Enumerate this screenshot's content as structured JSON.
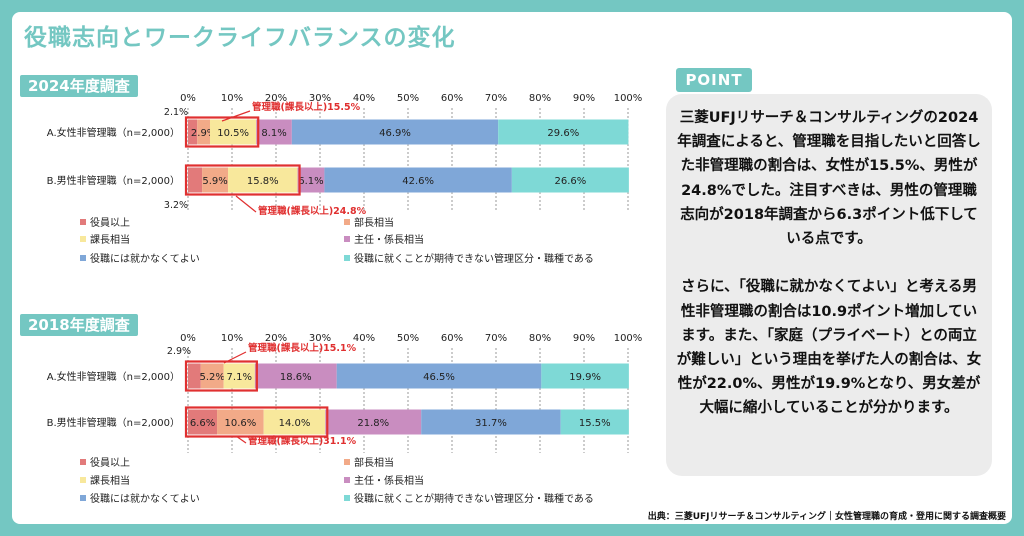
{
  "title": "役職志向とワークライフバランスの変化",
  "colors": {
    "accent": "#74C7C2",
    "highlight": "#E03030",
    "segments": [
      "#E27A7A",
      "#F2AA88",
      "#F8E89C",
      "#C98DC0",
      "#7FA7D8",
      "#7ED9D6"
    ]
  },
  "chart_data": [
    {
      "type": "bar",
      "orientation": "horizontal",
      "stacked": true,
      "title": "2024年度調査",
      "x_ticks": [
        "0%",
        "10%",
        "20%",
        "30%",
        "40%",
        "50%",
        "60%",
        "70%",
        "80%",
        "90%",
        "100%"
      ],
      "xlim": [
        0,
        100
      ],
      "categories": [
        "A.女性非管理職（n=2,000）",
        "B.男性非管理職（n=2,000）"
      ],
      "series": [
        {
          "name": "役員以上",
          "values": [
            2.1,
            3.2
          ],
          "labels": [
            "2.1%",
            "3.2%"
          ]
        },
        {
          "name": "部長相当",
          "values": [
            2.9,
            5.9
          ],
          "labels": [
            "2.9%",
            "5.9%"
          ]
        },
        {
          "name": "課長相当",
          "values": [
            10.5,
            15.8
          ],
          "labels": [
            "10.5%",
            "15.8%"
          ]
        },
        {
          "name": "主任・係長相当",
          "values": [
            8.1,
            6.1
          ],
          "labels": [
            "8.1%",
            "6.1%"
          ]
        },
        {
          "name": "役職には就かなくてよい",
          "values": [
            46.9,
            42.6
          ],
          "labels": [
            "46.9%",
            "42.6%"
          ]
        },
        {
          "name": "役職に就くことが期待できない管理区分・職種である",
          "values": [
            29.6,
            26.6
          ],
          "labels": [
            "29.6%",
            "26.6%"
          ]
        }
      ],
      "annotations": [
        "管理職(課長以上)15.5%",
        "管理職(課長以上)24.8%"
      ],
      "legend": "bottom",
      "grid": true
    },
    {
      "type": "bar",
      "orientation": "horizontal",
      "stacked": true,
      "title": "2018年度調査",
      "x_ticks": [
        "0%",
        "10%",
        "20%",
        "30%",
        "40%",
        "50%",
        "60%",
        "70%",
        "80%",
        "90%",
        "100%"
      ],
      "xlim": [
        0,
        100
      ],
      "categories": [
        "A.女性非管理職（n=2,000）",
        "B.男性非管理職（n=2,000）"
      ],
      "series": [
        {
          "name": "役員以上",
          "values": [
            2.9,
            6.6
          ],
          "labels": [
            "2.9%",
            "6.6%"
          ]
        },
        {
          "name": "部長相当",
          "values": [
            5.2,
            10.6
          ],
          "labels": [
            "5.2%",
            "10.6%"
          ]
        },
        {
          "name": "課長相当",
          "values": [
            7.1,
            14.0
          ],
          "labels": [
            "7.1%",
            "14.0%"
          ]
        },
        {
          "name": "主任・係長相当",
          "values": [
            18.6,
            21.8
          ],
          "labels": [
            "18.6%",
            "21.8%"
          ]
        },
        {
          "name": "役職には就かなくてよい",
          "values": [
            46.5,
            31.7
          ],
          "labels": [
            "46.5%",
            "31.7%"
          ]
        },
        {
          "name": "役職に就くことが期待できない管理区分・職種である",
          "values": [
            19.9,
            15.5
          ],
          "labels": [
            "19.9%",
            "15.5%"
          ]
        }
      ],
      "annotations": [
        "管理職(課長以上)15.1%",
        "管理職(課長以上)31.1%"
      ],
      "legend": "bottom",
      "grid": true
    }
  ],
  "point": {
    "label": "POINT",
    "text": "三菱UFJリサーチ＆コンサルティングの2024年調査によると、管理職を目指したいと回答した非管理職の割合は、女性が15.5%、男性が24.8%でした。注目すべきは、男性の管理職志向が2018年調査から6.3ポイント低下している点です。\n\nさらに、「役職に就かなくてよい」と考える男性非管理職の割合は10.9ポイント増加しています。また、「家庭（プライベート）との両立が難しい」という理由を挙げた人の割合は、女性が22.0%、男性が19.9%となり、男女差が大幅に縮小していることが分かります。"
  },
  "source": "出典：三菱UFJリサーチ＆コンサルティング｜女性管理職の育成・登用に関する調査概要"
}
